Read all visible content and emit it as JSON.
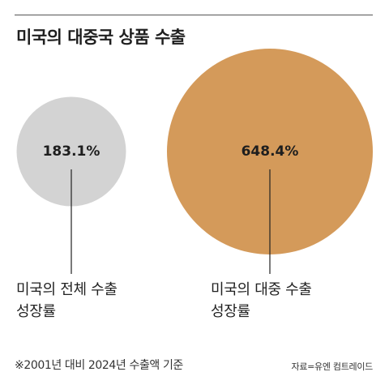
{
  "title": "미국의 대중국 상품 수출",
  "chart_data": {
    "type": "bubble",
    "unit": "%",
    "series": [
      {
        "label_lines": [
          "미국의 전체 수출",
          "성장률"
        ],
        "value": 183.1,
        "value_label": "183.1%",
        "color": "#d3d3d3"
      },
      {
        "label_lines": [
          "미국의 대중 수출",
          "성장률"
        ],
        "value": 648.4,
        "value_label": "648.4%",
        "color": "#d49a5a"
      }
    ]
  },
  "footnote": "※2001년 대비 2024년 수출액 기준",
  "source": "자료=유엔 컴트레이드"
}
